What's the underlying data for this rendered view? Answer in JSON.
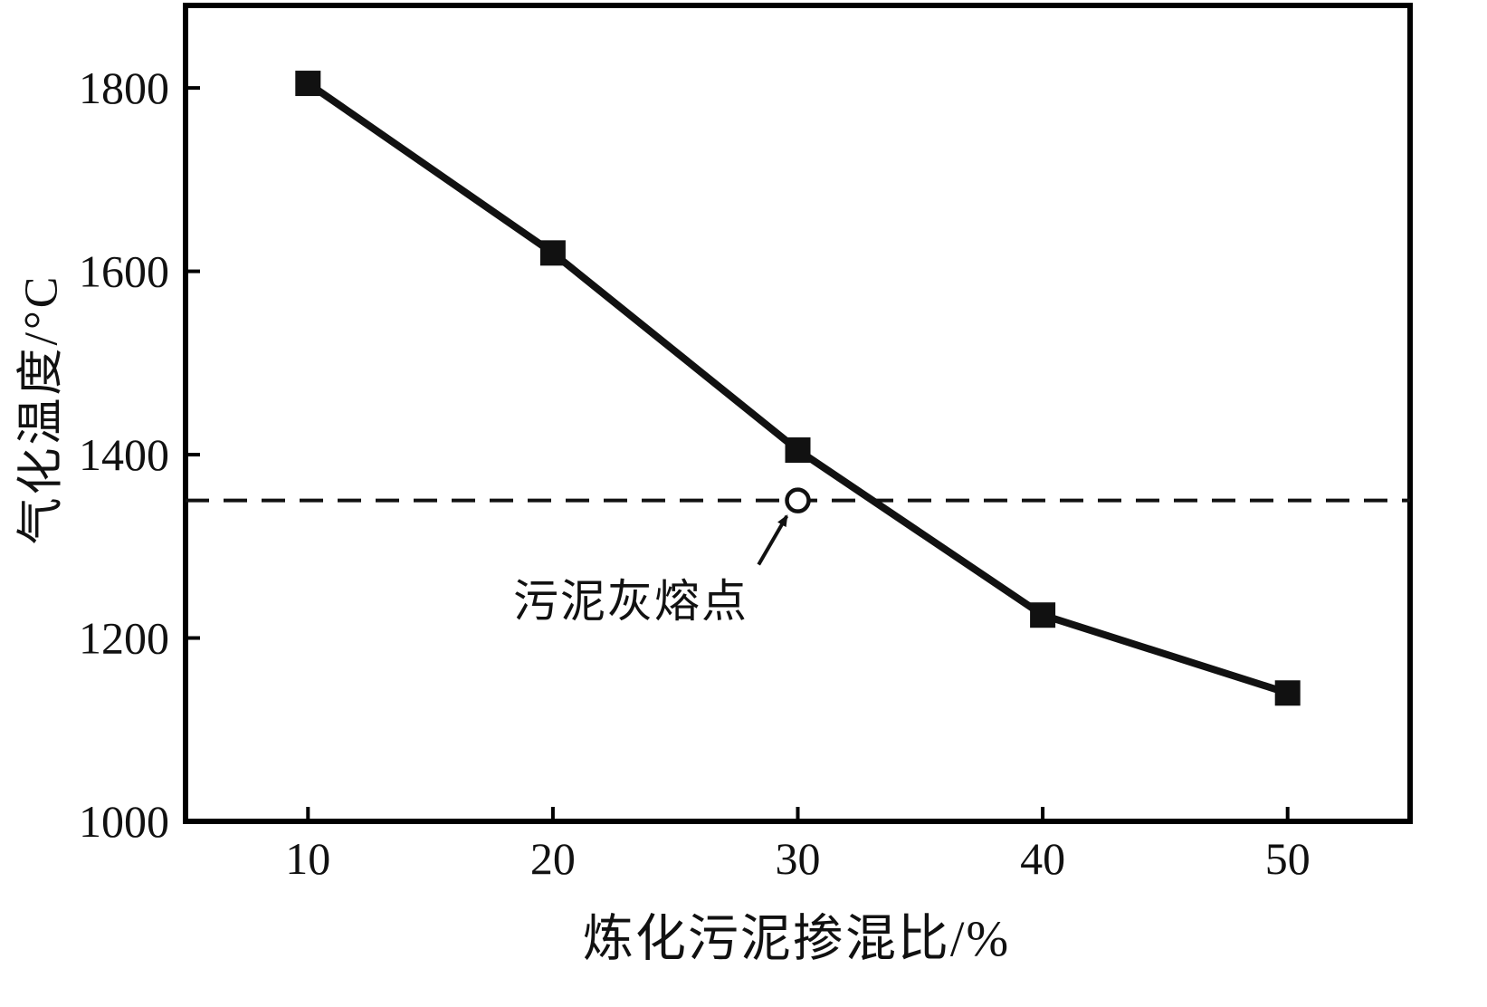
{
  "chart_data": {
    "type": "line",
    "title": "",
    "xlabel": "炼化污泥掺混比/%",
    "ylabel": "气化温度/°C",
    "x": [
      10,
      20,
      30,
      40,
      50
    ],
    "y": [
      1805,
      1620,
      1405,
      1225,
      1140
    ],
    "xlim": [
      5,
      55
    ],
    "ylim": [
      1000,
      1890
    ],
    "xticks": [
      10,
      20,
      30,
      40,
      50
    ],
    "yticks": [
      1000,
      1200,
      1400,
      1600,
      1800
    ],
    "grid": false,
    "legend": "none",
    "line_color": "#111111",
    "marker": "filled-square",
    "reference_line": {
      "value": 1350,
      "style": "dashed",
      "marker_point": {
        "x": 30,
        "y": 1350,
        "marker": "open-circle"
      }
    },
    "annotation": {
      "text": "污泥灰熔点",
      "text_pos": {
        "x": 23.2,
        "y": 1242
      },
      "arrow_start": {
        "x": 28.4,
        "y": 1280
      },
      "arrow_end": {
        "x": 29.55,
        "y": 1333
      }
    }
  }
}
